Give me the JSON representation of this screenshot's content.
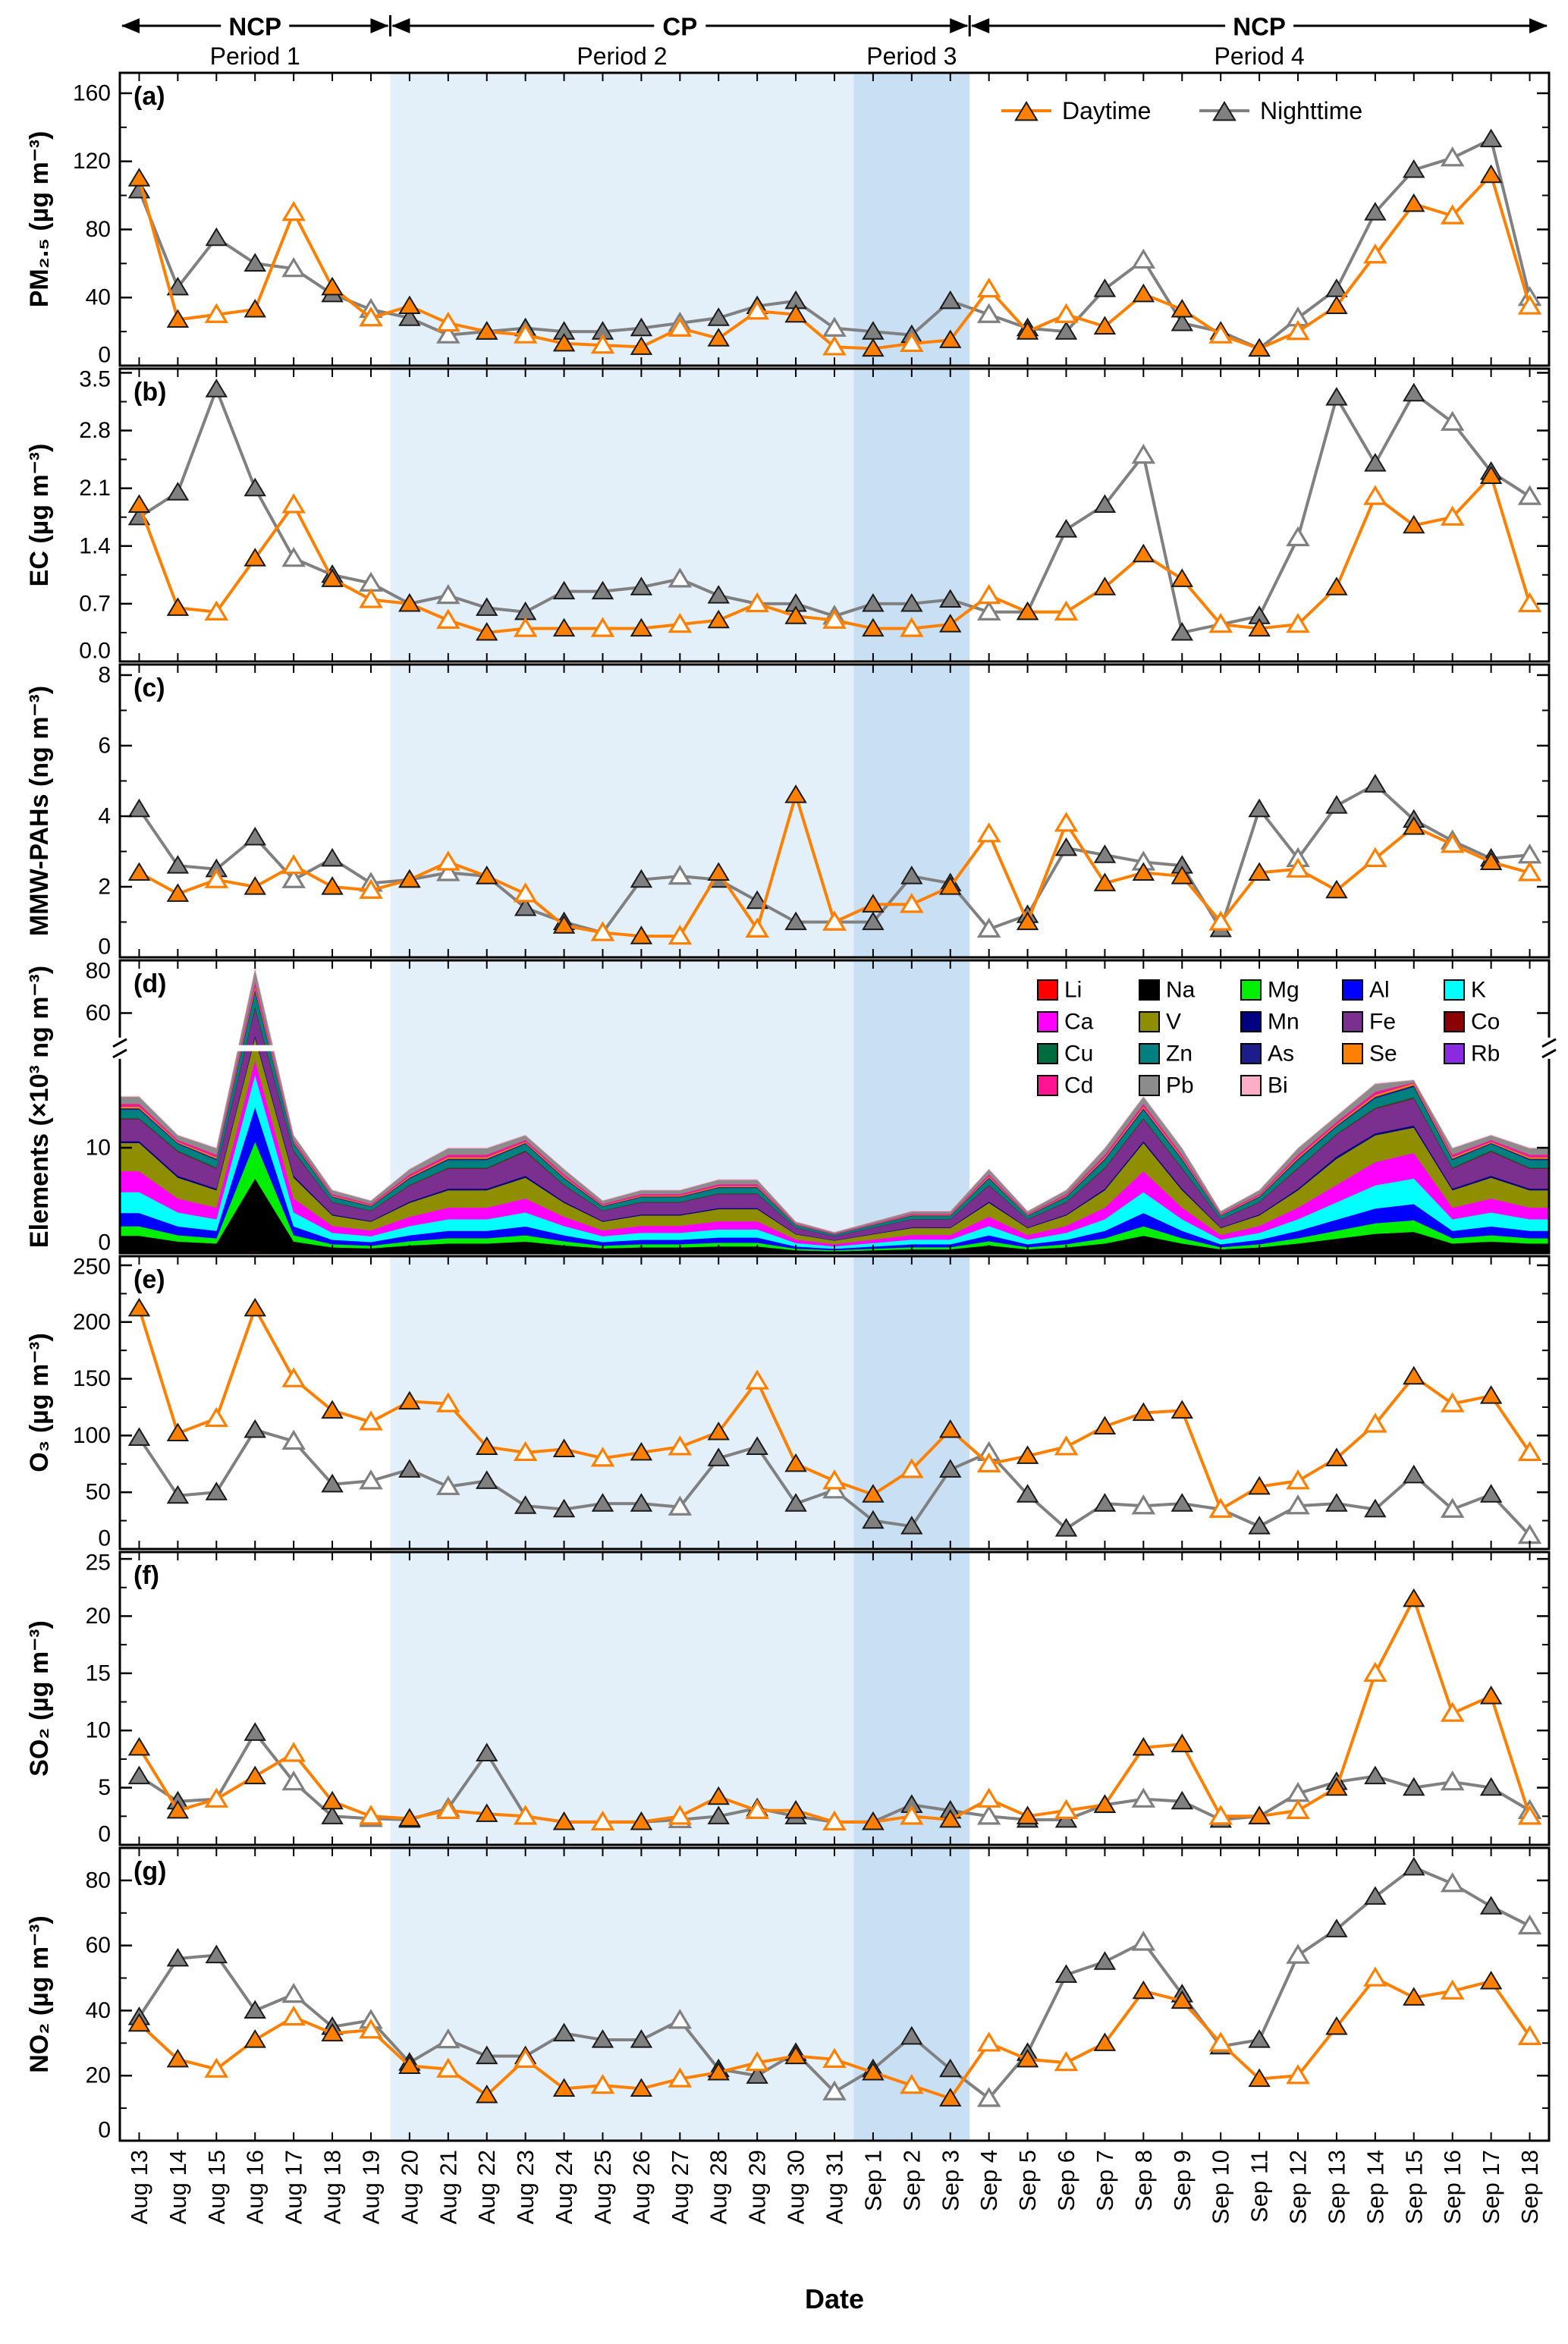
{
  "x": {
    "title": "Date",
    "dates": [
      "Aug 13",
      "Aug 14",
      "Aug 15",
      "Aug 16",
      "Aug 17",
      "Aug 18",
      "Aug 19",
      "Aug 20",
      "Aug 21",
      "Aug 22",
      "Aug 23",
      "Aug 24",
      "Aug 25",
      "Aug 26",
      "Aug 27",
      "Aug 28",
      "Aug 29",
      "Aug 30",
      "Aug 31",
      "Sep 1",
      "Sep 2",
      "Sep 3",
      "Sep 4",
      "Sep 5",
      "Sep 6",
      "Sep 7",
      "Sep 8",
      "Sep 9",
      "Sep 10",
      "Sep 11",
      "Sep 12",
      "Sep 13",
      "Sep 14",
      "Sep 15",
      "Sep 16",
      "Sep 17",
      "Sep 18"
    ]
  },
  "periods": {
    "regimes": [
      {
        "label": "NCP",
        "from": -0.5,
        "to": 6.5
      },
      {
        "label": "CP",
        "from": 6.5,
        "to": 21.5
      },
      {
        "label": "NCP",
        "from": 21.5,
        "to": 36.5
      }
    ],
    "spans": [
      {
        "label": "Period 1",
        "from": -0.5,
        "to": 6.5
      },
      {
        "label": "Period 2",
        "from": 6.5,
        "to": 18.5
      },
      {
        "label": "Period 3",
        "from": 18.5,
        "to": 21.5
      },
      {
        "label": "Period 4",
        "from": 21.5,
        "to": 36.5
      }
    ]
  },
  "shading": [
    {
      "from": 6.5,
      "to": 18.5,
      "color": "#E3EFF9"
    },
    {
      "from": 18.5,
      "to": 21.5,
      "color": "#C9DFF3"
    }
  ],
  "series_legend": [
    {
      "name": "Daytime",
      "color": "#FF8000"
    },
    {
      "name": "Nighttime",
      "color": "#808080"
    }
  ],
  "markers": {
    "day_open": [
      0,
      0,
      1,
      0,
      1,
      0,
      1,
      0,
      1,
      0,
      1,
      0,
      1,
      0,
      1,
      0,
      1,
      0,
      1,
      0,
      1,
      0,
      1,
      0,
      1,
      0,
      0,
      0,
      1,
      0,
      1,
      0,
      1,
      0,
      1,
      0,
      1
    ],
    "night_open": [
      0,
      0,
      0,
      0,
      1,
      0,
      1,
      0,
      1,
      0,
      0,
      0,
      0,
      0,
      1,
      0,
      0,
      0,
      1,
      0,
      0,
      0,
      1,
      0,
      0,
      0,
      1,
      0,
      0,
      0,
      1,
      0,
      0,
      0,
      1,
      0,
      1
    ]
  },
  "chart_data": [
    {
      "id": "a",
      "type": "line",
      "letter": "(a)",
      "ylabel": "PM₂.₅ (µg m⁻³)",
      "ymin": 0,
      "ymax": 172,
      "ytick_vals": [
        0,
        40,
        80,
        120,
        160
      ],
      "ytick_labels": [
        "0",
        "40",
        "80",
        "120",
        "160"
      ],
      "series": [
        {
          "name": "Daytime",
          "values": [
            110,
            27,
            30,
            33,
            90,
            46,
            28,
            35,
            25,
            20,
            18,
            13,
            12,
            11,
            22,
            16,
            32,
            30,
            11,
            10,
            13,
            15,
            45,
            20,
            30,
            23,
            42,
            33,
            18,
            10,
            20,
            35,
            65,
            95,
            88,
            112,
            35
          ]
        },
        {
          "name": "Nighttime",
          "values": [
            103,
            46,
            75,
            60,
            57,
            42,
            33,
            28,
            18,
            20,
            22,
            20,
            20,
            22,
            25,
            28,
            35,
            38,
            22,
            20,
            18,
            38,
            30,
            22,
            20,
            45,
            62,
            25,
            20,
            10,
            28,
            45,
            90,
            115,
            122,
            133,
            40
          ]
        }
      ]
    },
    {
      "id": "b",
      "type": "line",
      "letter": "(b)",
      "ylabel": "EC (µg m⁻³)",
      "ymin": 0,
      "ymax": 3.55,
      "ytick_vals": [
        0,
        0.7,
        1.4,
        2.1,
        2.8,
        3.5
      ],
      "ytick_labels": [
        "0.0",
        "0.7",
        "1.4",
        "2.1",
        "2.8",
        "3.5"
      ],
      "series": [
        {
          "name": "Daytime",
          "values": [
            1.9,
            0.65,
            0.6,
            1.25,
            1.9,
            1.0,
            0.75,
            0.7,
            0.5,
            0.35,
            0.4,
            0.4,
            0.4,
            0.4,
            0.45,
            0.5,
            0.7,
            0.55,
            0.5,
            0.4,
            0.4,
            0.45,
            0.8,
            0.6,
            0.6,
            0.9,
            1.3,
            1.0,
            0.45,
            0.4,
            0.45,
            0.9,
            2.0,
            1.65,
            1.75,
            2.25,
            0.7
          ]
        },
        {
          "name": "Nighttime",
          "values": [
            1.75,
            2.05,
            3.3,
            2.1,
            1.25,
            1.05,
            0.95,
            0.7,
            0.8,
            0.65,
            0.6,
            0.85,
            0.85,
            0.9,
            1.0,
            0.8,
            0.7,
            0.7,
            0.55,
            0.7,
            0.7,
            0.75,
            0.6,
            0.6,
            1.6,
            1.9,
            2.5,
            0.35,
            0.45,
            0.55,
            1.5,
            3.2,
            2.4,
            3.25,
            2.9,
            2.3,
            2.0
          ]
        }
      ]
    },
    {
      "id": "c",
      "type": "line",
      "letter": "(c)",
      "ylabel": "MMW-PAHs (ng m⁻³)",
      "ymin": 0,
      "ymax": 8.3,
      "ytick_vals": [
        0,
        2,
        4,
        6,
        8
      ],
      "ytick_labels": [
        "0",
        "2",
        "4",
        "6",
        "8"
      ],
      "series": [
        {
          "name": "Daytime",
          "values": [
            2.4,
            1.8,
            2.2,
            2.0,
            2.6,
            2.0,
            1.9,
            2.2,
            2.7,
            2.3,
            1.8,
            0.9,
            0.7,
            0.6,
            0.6,
            2.4,
            0.8,
            4.6,
            1.0,
            1.5,
            1.5,
            2.0,
            3.5,
            1.0,
            3.8,
            2.1,
            2.4,
            2.3,
            1.0,
            2.4,
            2.5,
            1.9,
            2.8,
            3.7,
            3.2,
            2.7,
            2.4
          ]
        },
        {
          "name": "Nighttime",
          "values": [
            4.2,
            2.6,
            2.5,
            3.4,
            2.2,
            2.8,
            2.1,
            2.2,
            2.4,
            2.3,
            1.4,
            1.0,
            0.7,
            2.2,
            2.3,
            2.2,
            1.6,
            1.0,
            1.0,
            1.0,
            2.3,
            2.1,
            0.8,
            1.2,
            3.1,
            2.9,
            2.7,
            2.6,
            0.8,
            4.2,
            2.8,
            4.3,
            4.9,
            3.9,
            3.3,
            2.8,
            2.9
          ]
        }
      ]
    },
    {
      "id": "d",
      "type": "stacked",
      "letter": "(d)",
      "ylabel": "Elements (×10³ ng m⁻³)",
      "ytick_vals": [
        0,
        10,
        60,
        80
      ],
      "ytick_labels": [
        "0",
        "10",
        "60",
        "80"
      ],
      "scale_points": [
        [
          0,
          0
        ],
        [
          10,
          0.36
        ],
        [
          20,
          0.58
        ],
        [
          60,
          0.82
        ],
        [
          80,
          1.0
        ]
      ],
      "break_frac": 0.7,
      "species": [
        {
          "name": "Li",
          "color": "#FF0000"
        },
        {
          "name": "Na",
          "color": "#000000"
        },
        {
          "name": "Mg",
          "color": "#00EE00"
        },
        {
          "name": "Al",
          "color": "#0000FF"
        },
        {
          "name": "K",
          "color": "#00FFFF"
        },
        {
          "name": "Ca",
          "color": "#FF00FF"
        },
        {
          "name": "V",
          "color": "#8E8E00"
        },
        {
          "name": "Mn",
          "color": "#000080"
        },
        {
          "name": "Fe",
          "color": "#7B2F8E"
        },
        {
          "name": "Co",
          "color": "#8B0000"
        },
        {
          "name": "Cu",
          "color": "#006B3C"
        },
        {
          "name": "Zn",
          "color": "#008080"
        },
        {
          "name": "As",
          "color": "#1C1C8B"
        },
        {
          "name": "Se",
          "color": "#FF8000"
        },
        {
          "name": "Rb",
          "color": "#8A2BE2"
        },
        {
          "name": "Cd",
          "color": "#FF1493"
        },
        {
          "name": "Pb",
          "color": "#8C8C8C"
        },
        {
          "name": "Bi",
          "color": "#FFAEC9"
        }
      ],
      "fractions": [
        0.002,
        0.09,
        0.05,
        0.07,
        0.11,
        0.11,
        0.165,
        0.015,
        0.19,
        0.004,
        0.008,
        0.07,
        0.012,
        0.015,
        0.004,
        0.02,
        0.06,
        0.005
      ],
      "totals": [
        18,
        12,
        10,
        77,
        12,
        6,
        5,
        8,
        10,
        10,
        12,
        8,
        5,
        6,
        6,
        7,
        7,
        3,
        2,
        3,
        4,
        4,
        8,
        4,
        6,
        10,
        18,
        10,
        4,
        6,
        10,
        15,
        20,
        22,
        10,
        12,
        10
      ]
    },
    {
      "id": "e",
      "type": "line",
      "letter": "(e)",
      "ylabel": "O₃ (µg m⁻³)",
      "ymin": 0,
      "ymax": 258,
      "ytick_vals": [
        0,
        50,
        100,
        150,
        200,
        250
      ],
      "ytick_labels": [
        "0",
        "50",
        "100",
        "150",
        "200",
        "250"
      ],
      "series": [
        {
          "name": "Daytime",
          "values": [
            212,
            102,
            115,
            212,
            150,
            122,
            112,
            130,
            128,
            90,
            85,
            88,
            80,
            85,
            90,
            103,
            148,
            75,
            60,
            48,
            70,
            105,
            75,
            82,
            90,
            108,
            120,
            122,
            35,
            55,
            60,
            80,
            110,
            152,
            128,
            135,
            85
          ]
        },
        {
          "name": "Nighttime",
          "values": [
            98,
            47,
            50,
            105,
            95,
            57,
            60,
            70,
            55,
            60,
            38,
            35,
            40,
            40,
            37,
            80,
            90,
            40,
            52,
            25,
            20,
            70,
            85,
            48,
            18,
            40,
            38,
            40,
            35,
            20,
            38,
            40,
            35,
            65,
            35,
            48,
            12
          ]
        }
      ]
    },
    {
      "id": "f",
      "type": "line",
      "letter": "(f)",
      "ylabel": "SO₂ (µg m⁻³)",
      "ymin": 0,
      "ymax": 25.6,
      "ytick_vals": [
        0,
        5,
        10,
        15,
        20,
        25
      ],
      "ytick_labels": [
        "0",
        "5",
        "10",
        "15",
        "20",
        "25"
      ],
      "series": [
        {
          "name": "Daytime",
          "values": [
            8.5,
            3,
            4,
            6,
            8,
            3.8,
            2.5,
            2.3,
            3,
            2.7,
            2.5,
            2,
            2,
            2,
            2.5,
            4.2,
            3,
            3,
            2,
            2,
            2.5,
            2.2,
            4,
            2.5,
            3,
            3.5,
            8.5,
            8.8,
            2.5,
            2.5,
            3,
            5,
            15,
            21.5,
            11.5,
            13,
            2.5
          ]
        },
        {
          "name": "Nighttime",
          "values": [
            6,
            3.8,
            4,
            9.8,
            5.5,
            2.5,
            2.3,
            2.2,
            3.2,
            8,
            2.5,
            2,
            2,
            2,
            2.2,
            2.5,
            3.2,
            2.5,
            2,
            2,
            3.5,
            3,
            2.5,
            2.2,
            2.2,
            3.5,
            4,
            3.8,
            2.2,
            2.5,
            4.5,
            5.5,
            6,
            5,
            5.5,
            5,
            3
          ]
        }
      ]
    },
    {
      "id": "g",
      "type": "line",
      "letter": "(g)",
      "ylabel": "NO₂ (µg m⁻³)",
      "ymin": 0,
      "ymax": 90,
      "ytick_vals": [
        0,
        20,
        40,
        60,
        80
      ],
      "ytick_labels": [
        "0",
        "20",
        "40",
        "60",
        "80"
      ],
      "series": [
        {
          "name": "Daytime",
          "values": [
            36,
            25,
            22,
            31,
            38,
            33,
            34,
            23,
            22,
            14,
            25,
            16,
            17,
            16,
            19,
            21,
            24,
            26,
            25,
            21,
            17,
            13,
            30,
            25,
            24,
            30,
            46,
            43,
            30,
            19,
            20,
            35,
            50,
            44,
            46,
            49,
            32
          ]
        },
        {
          "name": "Nighttime",
          "values": [
            38,
            56,
            57,
            40,
            45,
            35,
            37,
            24,
            31,
            26,
            26,
            33,
            31,
            31,
            37,
            22,
            20,
            27,
            15,
            22,
            32,
            22,
            13,
            27,
            51,
            55,
            61,
            45,
            29,
            31,
            57,
            65,
            75,
            84,
            79,
            72,
            66
          ]
        }
      ]
    }
  ]
}
